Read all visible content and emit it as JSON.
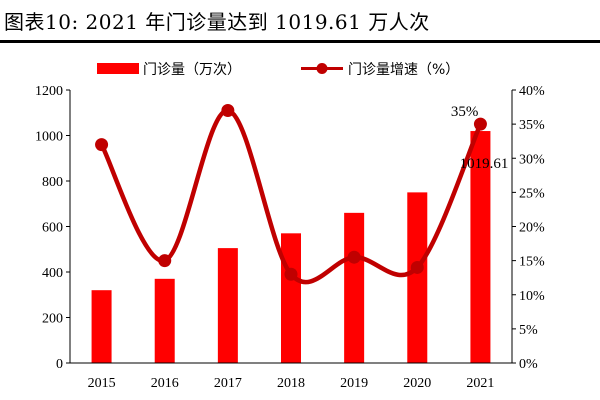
{
  "figure": {
    "title": "图表10:   2021 年门诊量达到 1019.61 万人次"
  },
  "chart_data": {
    "type": "bar",
    "categories": [
      "2015",
      "2016",
      "2017",
      "2018",
      "2019",
      "2020",
      "2021"
    ],
    "series": [
      {
        "name": "门诊量（万次）",
        "type": "bar",
        "axis": "left",
        "color": "#ff0000",
        "values": [
          320,
          370,
          505,
          570,
          660,
          750,
          1019.61
        ]
      },
      {
        "name": "门诊量增速（%）",
        "type": "line",
        "axis": "right",
        "color": "#c00000",
        "values": [
          32,
          15,
          37,
          13,
          15.5,
          14,
          35
        ]
      }
    ],
    "y_left": {
      "min": 0,
      "max": 1200,
      "ticks": [
        "0",
        "200",
        "400",
        "600",
        "800",
        "1000",
        "1200"
      ]
    },
    "y_right": {
      "min": 0,
      "max": 40,
      "ticks": [
        "0%",
        "5%",
        "10%",
        "15%",
        "20%",
        "25%",
        "30%",
        "35%",
        "40%"
      ]
    },
    "annotations": [
      {
        "text": "35%",
        "category": "2021",
        "series": "门诊量增速（%）"
      },
      {
        "text": "1019.61",
        "category": "2021",
        "series": "门诊量（万次）"
      }
    ],
    "legend_position": "top-center",
    "grid": false
  }
}
